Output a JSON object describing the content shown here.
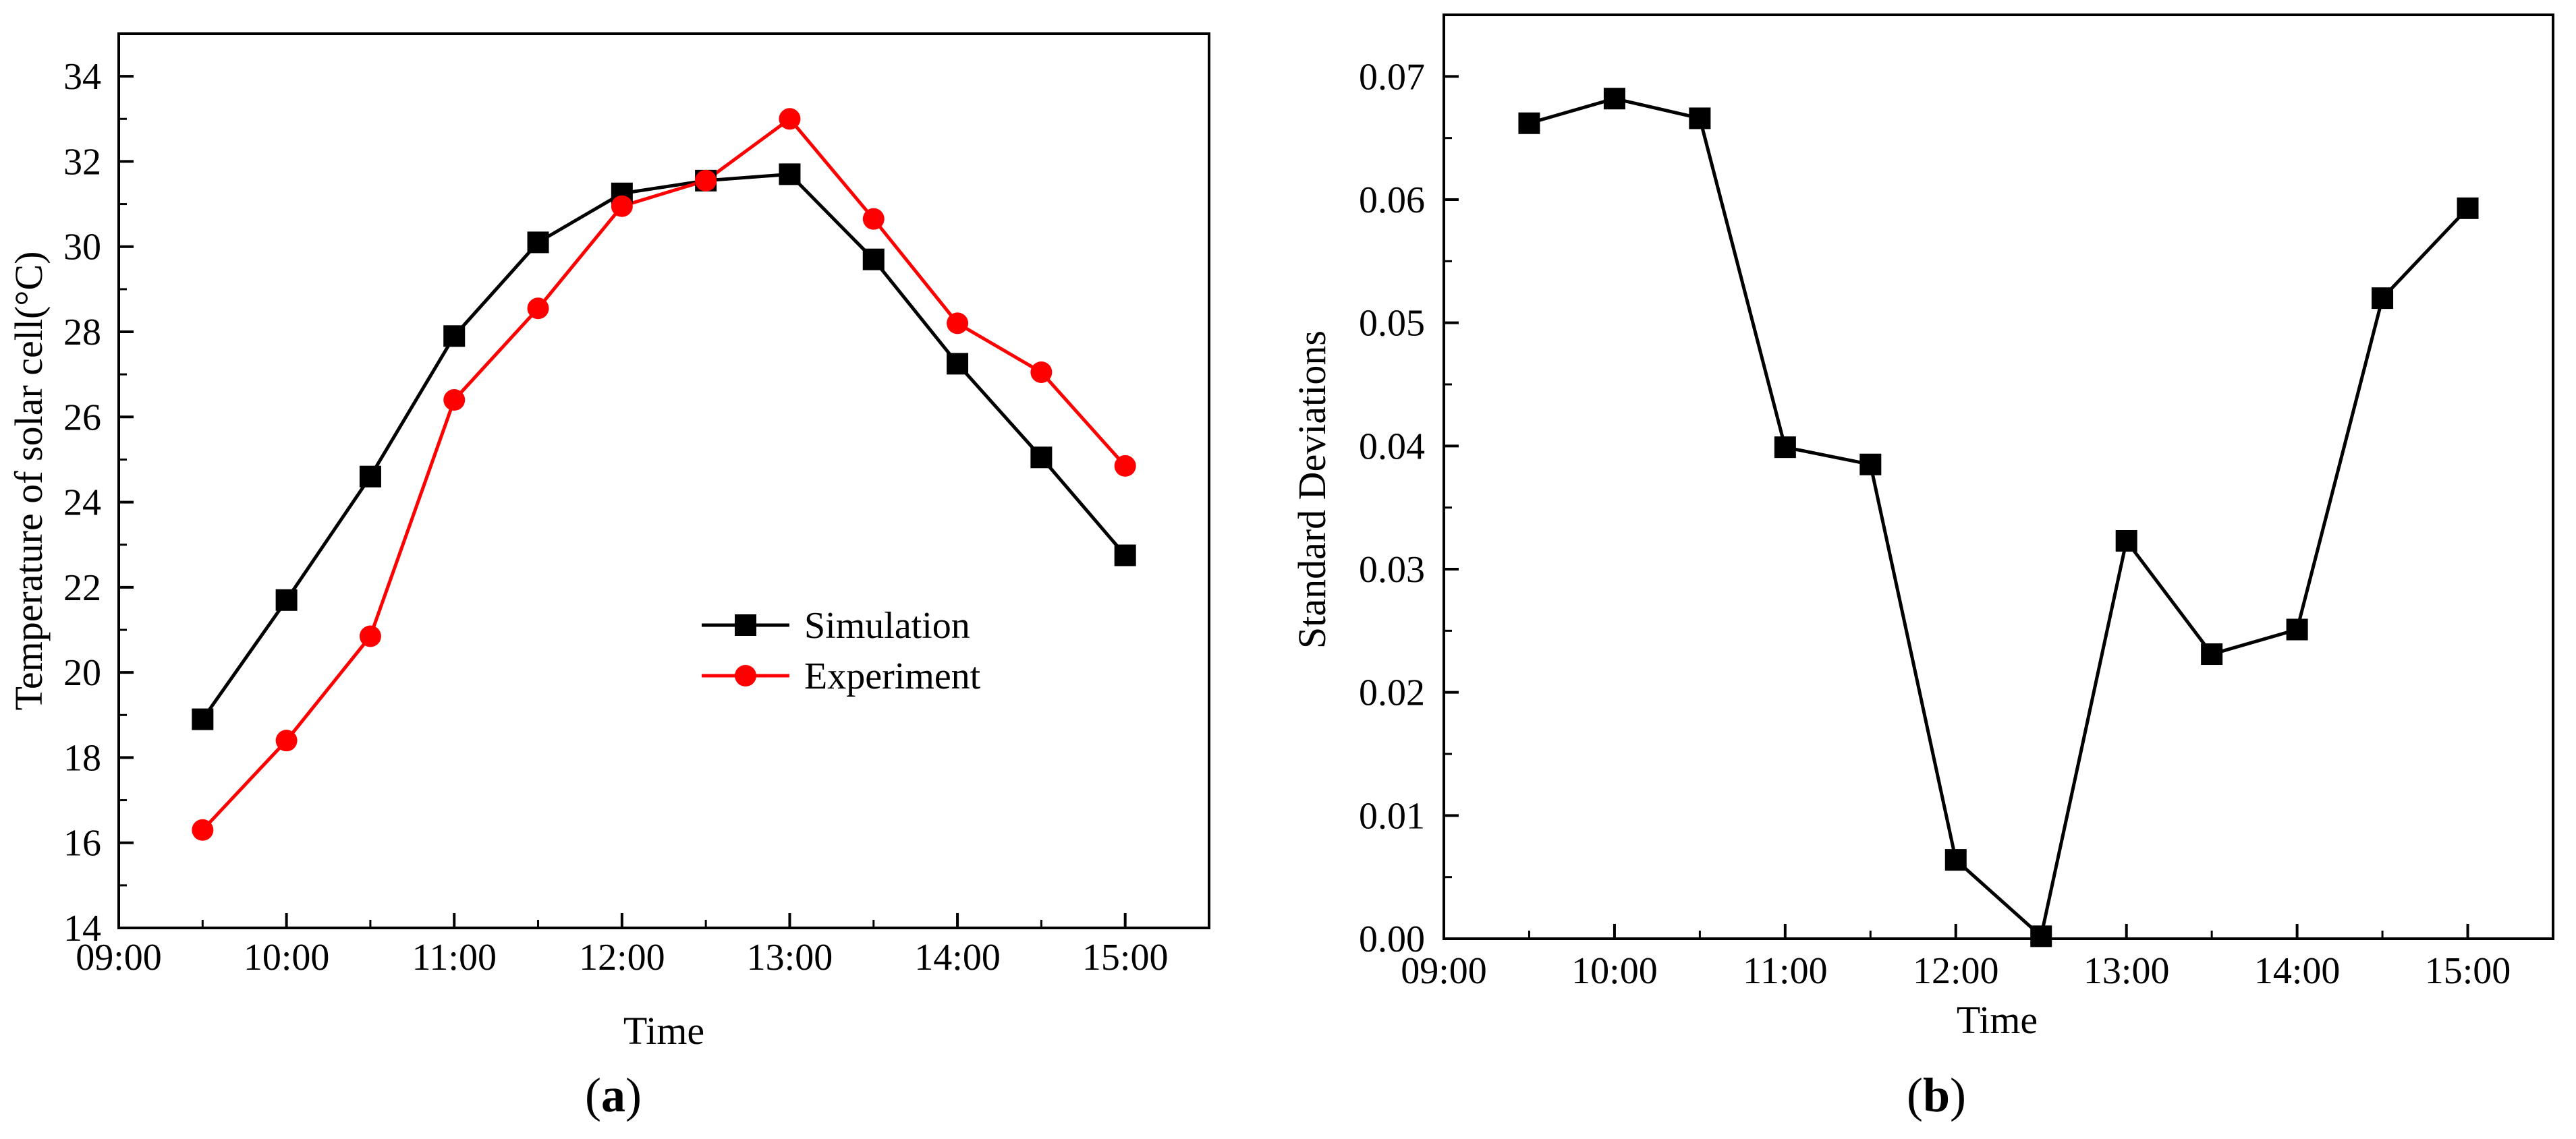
{
  "chart_data": [
    {
      "type": "line",
      "panel": "a",
      "title": "",
      "xlabel": "Time",
      "ylabel": "Temperature of solar cell(°C)",
      "x_ticks": [
        "09:00",
        "10:00",
        "11:00",
        "12:00",
        "13:00",
        "14:00",
        "15:00"
      ],
      "xlim": [
        9.0,
        15.5
      ],
      "ylim": [
        14,
        35
      ],
      "y_ticks": [
        14,
        16,
        18,
        20,
        22,
        24,
        26,
        28,
        30,
        32,
        34
      ],
      "x": [
        9.5,
        10.0,
        10.5,
        11.0,
        11.5,
        12.0,
        12.5,
        13.0,
        13.5,
        14.0,
        14.5,
        15.0
      ],
      "series": [
        {
          "name": "Simulation",
          "color": "#000000",
          "marker": "square",
          "values": [
            18.9,
            21.7,
            24.6,
            27.9,
            30.1,
            31.25,
            31.55,
            31.7,
            29.7,
            27.25,
            25.05,
            22.75
          ]
        },
        {
          "name": "Experiment",
          "color": "#ff0000",
          "marker": "circle",
          "values": [
            16.3,
            18.4,
            20.85,
            26.4,
            28.55,
            30.95,
            31.55,
            33.0,
            30.65,
            28.2,
            27.05,
            24.85
          ]
        }
      ],
      "legend": "center-right"
    },
    {
      "type": "line",
      "panel": "b",
      "title": "",
      "xlabel": "Time",
      "ylabel": "Standard Deviations",
      "x_ticks": [
        "09:00",
        "10:00",
        "11:00",
        "12:00",
        "13:00",
        "14:00",
        "15:00"
      ],
      "xlim": [
        9.0,
        15.5
      ],
      "ylim": [
        0.0,
        0.075
      ],
      "y_ticks": [
        "0.00",
        "0.01",
        "0.02",
        "0.03",
        "0.04",
        "0.05",
        "0.06",
        "0.07"
      ],
      "x": [
        9.5,
        10.0,
        10.5,
        11.0,
        11.5,
        12.0,
        12.5,
        13.0,
        13.5,
        14.0,
        14.5,
        15.0
      ],
      "series": [
        {
          "name": "Standard Deviations",
          "color": "#000000",
          "marker": "square",
          "values": [
            0.0662,
            0.0682,
            0.0666,
            0.0399,
            0.0385,
            0.0064,
            0.0002,
            0.0323,
            0.0231,
            0.0251,
            0.052,
            0.0593
          ]
        }
      ]
    }
  ],
  "panels": {
    "a": {
      "label_open": "(",
      "letter": "a",
      "label_close": ")"
    },
    "b": {
      "label_open": "(",
      "letter": "b",
      "label_close": ")"
    }
  }
}
